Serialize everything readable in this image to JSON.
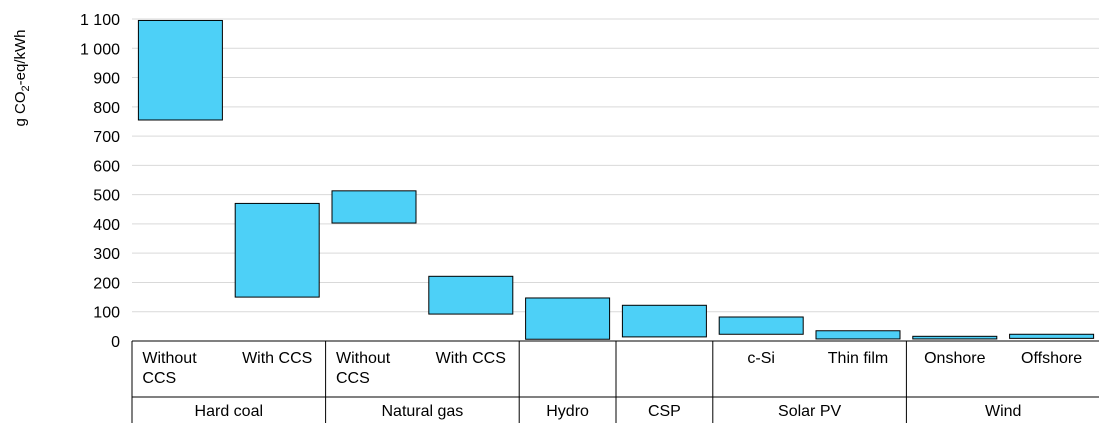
{
  "chart_data": {
    "type": "bar",
    "subtype": "floating-range",
    "ylabel": {
      "prefix": "g CO",
      "sub": "2",
      "suffix": "-eq/kWh"
    },
    "ylim": [
      0,
      1100
    ],
    "y_ticks": [
      "0",
      "100",
      "200",
      "300",
      "400",
      "500",
      "600",
      "700",
      "800",
      "900",
      "1 000",
      "1 100"
    ],
    "y_tick_values": [
      0,
      100,
      200,
      300,
      400,
      500,
      600,
      700,
      800,
      900,
      1000,
      1100
    ],
    "grid": "horizontal",
    "bar_color": "#4DD0F7",
    "groups": [
      {
        "name": "Hard coal",
        "items": [
          {
            "label": [
              "Without",
              "CCS"
            ],
            "low": 755,
            "high": 1095
          },
          {
            "label": [
              "With CCS"
            ],
            "low": 150,
            "high": 470
          }
        ]
      },
      {
        "name": "Natural gas",
        "items": [
          {
            "label": [
              "Without",
              "CCS"
            ],
            "low": 403,
            "high": 513
          },
          {
            "label": [
              "With CCS"
            ],
            "low": 92,
            "high": 221
          }
        ]
      },
      {
        "name": "Hydro",
        "items": [
          {
            "label": [],
            "low": 6,
            "high": 147
          }
        ]
      },
      {
        "name": "CSP",
        "items": [
          {
            "label": [],
            "low": 14,
            "high": 122
          }
        ]
      },
      {
        "name": "Solar PV",
        "items": [
          {
            "label": [
              "c-Si"
            ],
            "low": 23,
            "high": 82
          },
          {
            "label": [
              "Thin film"
            ],
            "low": 7,
            "high": 35
          }
        ]
      },
      {
        "name": "Wind",
        "items": [
          {
            "label": [
              "Onshore"
            ],
            "low": 7,
            "high": 16
          },
          {
            "label": [
              "Offshore"
            ],
            "low": 9,
            "high": 23
          }
        ]
      }
    ]
  }
}
